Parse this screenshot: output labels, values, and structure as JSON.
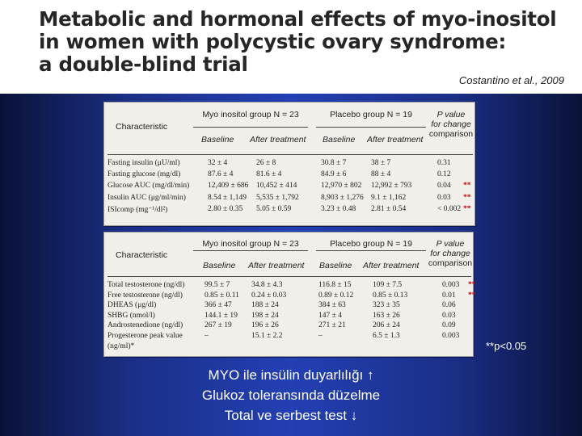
{
  "slide": {
    "title_lines": [
      "Metabolic and hormonal effects of myo-inositol",
      "in women with polycystic ovary syndrome:",
      "a double-blind trial"
    ],
    "citation": "Costantino et al., 2009",
    "footnote": "**p<0.05",
    "notes": [
      {
        "text": "MYO ile insülin duyarlılığı",
        "arrow": "↑"
      },
      {
        "text": "Glukoz toleransında düzelme",
        "arrow": ""
      },
      {
        "text": "Total ve serbest test",
        "arrow": "↓"
      }
    ],
    "colors": {
      "accent_stars": "#cc0000",
      "background": "#2340b4",
      "text_light": "#ffffff"
    }
  },
  "table1": {
    "characteristic_label": "Characteristic",
    "group_myo": "Myo inositol group N = 23",
    "group_placebo": "Placebo group N = 19",
    "pvalue_label_1": "P value",
    "pvalue_label_2": "for change",
    "pvalue_label_3": "comparison",
    "sub_baseline": "Baseline",
    "sub_after": "After treatment",
    "rows": [
      {
        "label": "Fasting insulin (μU/ml)",
        "myo_base": "32 ± 4",
        "myo_after": "26 ± 8",
        "pl_base": "30.8 ± 7",
        "pl_after": "38 ± 7",
        "p": "0.31",
        "stars": ""
      },
      {
        "label": "Fasting glucose (mg/dl)",
        "myo_base": "87.6 ± 4",
        "myo_after": "81.6 ± 4",
        "pl_base": "84.9 ± 6",
        "pl_after": "88 ± 4",
        "p": "0.12",
        "stars": ""
      },
      {
        "label": "Glucose AUC (mg/dl/min)",
        "myo_base": "12,409 ± 686",
        "myo_after": "10,452 ± 414",
        "pl_base": "12,970 ± 802",
        "pl_after": "12,992 ± 793",
        "p": "0.04",
        "stars": "**"
      },
      {
        "label": "Insulin AUC (μg/ml/min)",
        "myo_base": "8.54 ± 1,149",
        "myo_after": "5,535 ± 1,792",
        "pl_base": "8,903 ± 1,276",
        "pl_after": "9.1 ± 1,162",
        "p": "0.03",
        "stars": "**"
      },
      {
        "label": "ISIcomp (mg⁻¹/dl²)",
        "myo_base": "2.80 ± 0.35",
        "myo_after": "5.05 ± 0.59",
        "pl_base": "3.23 ± 0.48",
        "pl_after": "2.81 ± 0.54",
        "p": "< 0.002",
        "stars": "**"
      }
    ]
  },
  "table2": {
    "characteristic_label": "Characteristic",
    "group_myo": "Myo inositol group N = 23",
    "group_placebo": "Placebo group N = 19",
    "pvalue_label_1": "P value",
    "pvalue_label_2": "for change",
    "pvalue_label_3": "comparison",
    "sub_baseline": "Baseline",
    "sub_after": "After treatment",
    "rows": [
      {
        "label": "Total testosterone (ng/dl)",
        "myo_base": "99.5 ± 7",
        "myo_after": "34.8 ± 4.3",
        "pl_base": "116.8 ± 15",
        "pl_after": "109 ± 7.5",
        "p": "0.003",
        "stars": "**"
      },
      {
        "label": "Free testosterone (ng/dl)",
        "myo_base": "0.85 ± 0.11",
        "myo_after": "0.24 ± 0.03",
        "pl_base": "0.89 ± 0.12",
        "pl_after": "0.85 ± 0.13",
        "p": "0.01",
        "stars": "**"
      },
      {
        "label": "DHEAS (μg/dl)",
        "myo_base": "366 ± 47",
        "myo_after": "188 ± 24",
        "pl_base": "384 ± 63",
        "pl_after": "323 ± 35",
        "p": "0.06",
        "stars": ""
      },
      {
        "label": "SHBG (nmol/l)",
        "myo_base": "144.1 ± 19",
        "myo_after": "198 ± 24",
        "pl_base": "147 ± 4",
        "pl_after": "163 ± 26",
        "p": "0.03",
        "stars": ""
      },
      {
        "label": "Androstenedione (ng/dl)",
        "myo_base": "267 ± 19",
        "myo_after": "196 ± 26",
        "pl_base": "271 ± 21",
        "pl_after": "206 ± 24",
        "p": "0.09",
        "stars": ""
      },
      {
        "label": "Progesterone peak value",
        "myo_base": "–",
        "myo_after": "15.1 ± 2.2",
        "pl_base": "–",
        "pl_after": "6.5 ± 1.3",
        "p": "0.003",
        "stars": ""
      },
      {
        "label": "(ng/ml)*",
        "myo_base": "",
        "myo_after": "",
        "pl_base": "",
        "pl_after": "",
        "p": "",
        "stars": ""
      }
    ]
  }
}
